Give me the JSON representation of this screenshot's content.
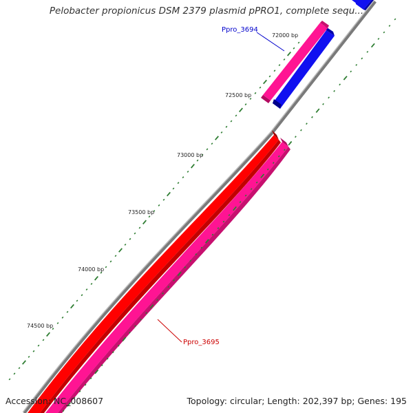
{
  "title": "Pelobacter propionicus DSM 2379 plasmid pPRO1, complete sequ...",
  "footer": {
    "accession": "Accession: NC_008607",
    "summary": "Topology: circular; Length: 202,397 bp; Genes: 195"
  },
  "ticks": [
    {
      "label": "72000 bp"
    },
    {
      "label": "72500 bp"
    },
    {
      "label": "73000 bp"
    },
    {
      "label": "73500 bp"
    },
    {
      "label": "74000 bp"
    },
    {
      "label": "74500 bp"
    }
  ],
  "genes": [
    {
      "name": "Ppro_3694",
      "color": "#0000cc"
    },
    {
      "name": "Ppro_3695",
      "color": "#cc0000"
    }
  ],
  "colors": {
    "backbone": "#808080",
    "forward_gene": "#ff1493",
    "reverse_gene_blue": "#0000ee",
    "reverse_gene_red": "#ff0000",
    "tick": "#2e7d32"
  }
}
